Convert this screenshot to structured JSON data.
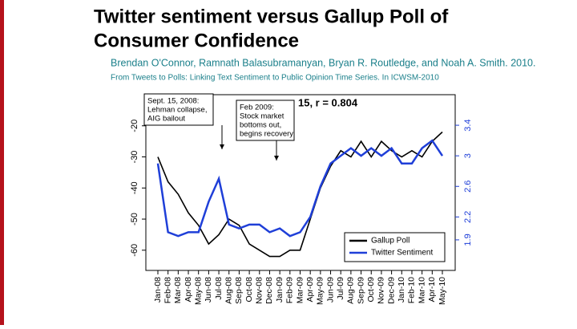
{
  "chart_data": {
    "type": "line",
    "title": [
      "Twitter sentiment versus Gallup Poll of",
      "Consumer Confidence"
    ],
    "authors": "Brendan O'Connor, Ramnath Balasubramanyan, Bryan R. Routledge, and Noah A. Smith. 2010.",
    "citation": "From Tweets to Polls: Linking Text Sentiment to Public Opinion Time Series. In ICWSM-2010",
    "annotations": [
      {
        "lines": [
          "Sept. 15, 2008:",
          "Lehman collapse,",
          "AIG bailout"
        ]
      },
      {
        "lines": [
          "Feb 2009:",
          "Stock market",
          "bottoms out,",
          "begins recovery"
        ]
      },
      {
        "lines": [
          "15, r = 0.804"
        ]
      }
    ],
    "categories": [
      "Jan-08",
      "Feb-08",
      "Mar-08",
      "Apr-08",
      "May-08",
      "Jun-08",
      "Jul-08",
      "Aug-08",
      "Sep-08",
      "Oct-08",
      "Nov-08",
      "Dec-08",
      "Jan-09",
      "Feb-09",
      "Mar-09",
      "Apr-09",
      "May-09",
      "Jun-09",
      "Jul-09",
      "Aug-09",
      "Sep-09",
      "Oct-09",
      "Nov-09",
      "Dec-09",
      "Jan-10",
      "Feb-10",
      "Mar-10",
      "Apr-10",
      "May-10"
    ],
    "series": [
      {
        "name": "Gallup Poll",
        "color": "#000000",
        "axis": "y",
        "values": [
          -30,
          -38,
          -42,
          -48,
          -52,
          -58,
          -55,
          -50,
          -52,
          -58,
          -60,
          -62,
          -62,
          -60,
          -60,
          -50,
          -40,
          -33,
          -28,
          -30,
          -25,
          -30,
          -25,
          -28,
          -30,
          -28,
          -30,
          -25,
          -22
        ]
      },
      {
        "name": "Twitter Sentiment",
        "color": "#1f3fd8",
        "axis": "y2",
        "values": [
          2.9,
          2.0,
          1.95,
          2.0,
          2.0,
          2.4,
          2.7,
          2.1,
          2.05,
          2.1,
          2.1,
          2.0,
          2.05,
          1.95,
          2.0,
          2.2,
          2.6,
          2.9,
          3.0,
          3.1,
          3.0,
          3.1,
          3.0,
          3.1,
          2.9,
          2.9,
          3.1,
          3.2,
          3.0
        ]
      }
    ],
    "ylim": [
      -66.5,
      -10
    ],
    "yticks": [
      -20,
      -30,
      -40,
      -50,
      -60
    ],
    "y2lim": [
      1.5,
      3.8
    ],
    "y2ticks": [
      3.4,
      3.0,
      2.6,
      2.2,
      1.9
    ],
    "y2tick_color": "#1f3fd8",
    "legend": "lower right"
  }
}
